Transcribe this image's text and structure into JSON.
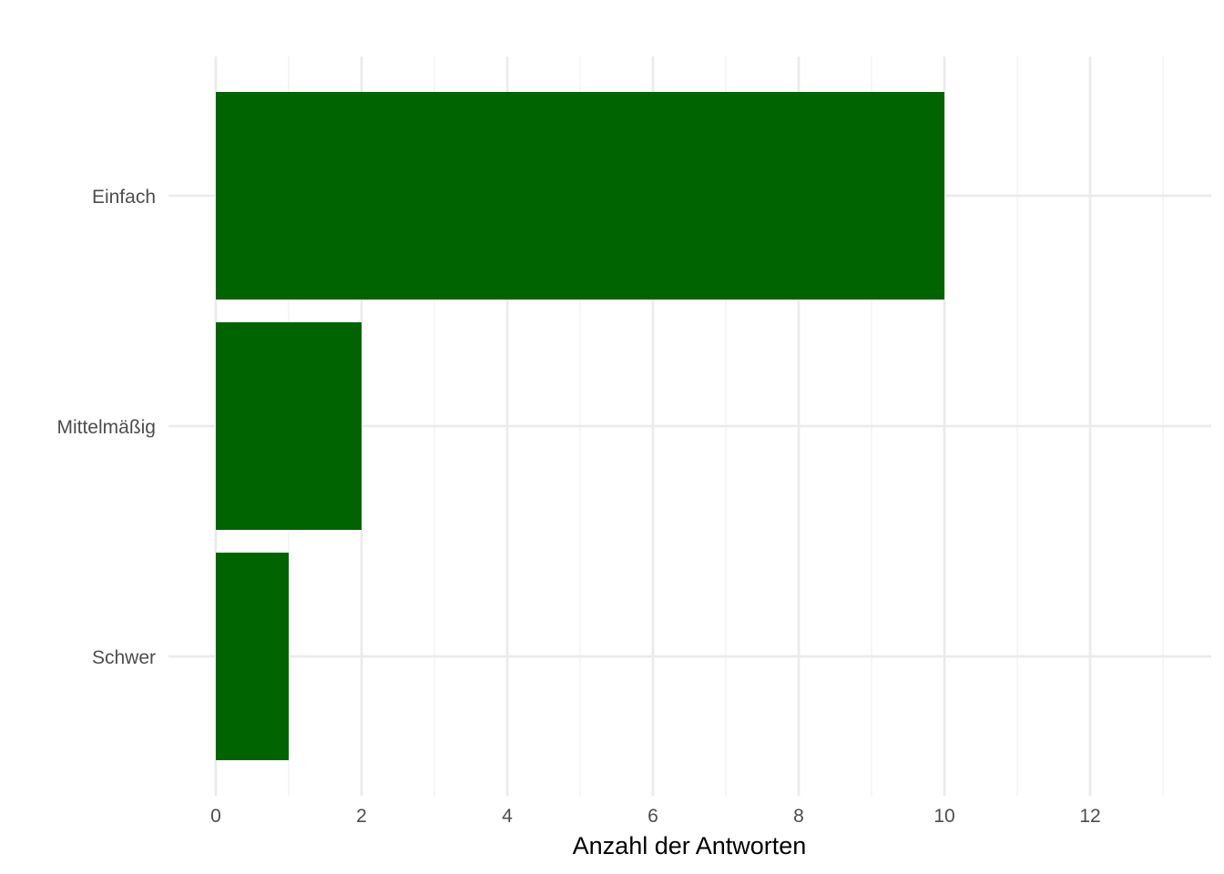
{
  "chart_data": {
    "type": "bar",
    "orientation": "horizontal",
    "categories": [
      "Einfach",
      "Mittelmäßig",
      "Schwer"
    ],
    "values": [
      10,
      2,
      1
    ],
    "title": "",
    "xlabel": "Anzahl der Antworten",
    "ylabel": "",
    "xlim": [
      0,
      13.5
    ],
    "x_ticks": [
      0,
      2,
      4,
      6,
      8,
      10,
      12
    ],
    "x_tick_labels": [
      "0",
      "2",
      "4",
      "6",
      "8",
      "10",
      "12"
    ],
    "x_minor_gridlines": [
      1,
      3,
      5,
      7,
      9,
      11,
      13
    ],
    "grid": true,
    "legend": "none",
    "colors": {
      "bar": "#006400",
      "grid_major": "#ebebeb",
      "grid_minor": "#f3f3f3",
      "tick_label": "#4d4d4d",
      "axis_title": "#000000"
    }
  }
}
